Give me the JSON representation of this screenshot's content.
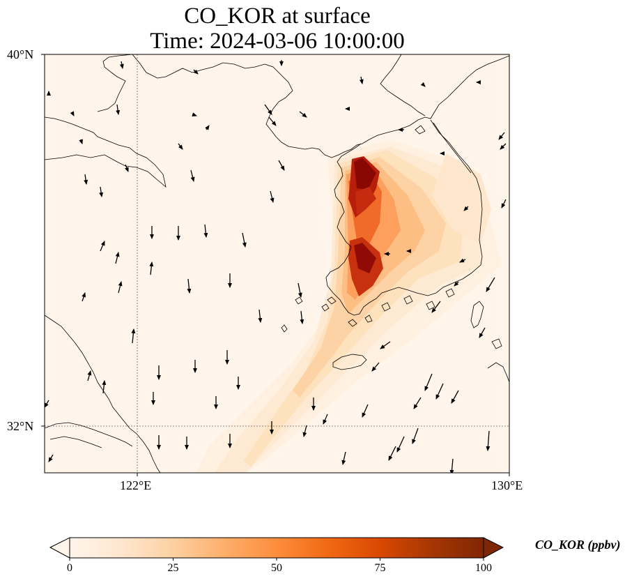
{
  "title": {
    "line1": "CO_KOR at surface",
    "line2": "Time: 2024-03-06 10:00:00"
  },
  "axes": {
    "lat_ticks": [
      "40°N",
      "32°N"
    ],
    "lon_ticks": [
      "122°E",
      "130°E"
    ],
    "lat_range": [
      31,
      40
    ],
    "lon_range": [
      120,
      130
    ],
    "gridlines": "dotted at 122°E and 32°N"
  },
  "colorbar": {
    "label": "CO_KOR (ppbv)",
    "ticks": [
      "0",
      "25",
      "50",
      "75",
      "100"
    ],
    "range": [
      0,
      100
    ],
    "extend": "both",
    "colormap": [
      "#fff5eb",
      "#fee6ce",
      "#fdd0a2",
      "#fdae6b",
      "#fd8d3c",
      "#f16913",
      "#d94801",
      "#a63603",
      "#7f2704"
    ]
  },
  "map_style": {
    "background": "#fff5eb",
    "coastline": "#000000",
    "vector": "#000000"
  }
}
